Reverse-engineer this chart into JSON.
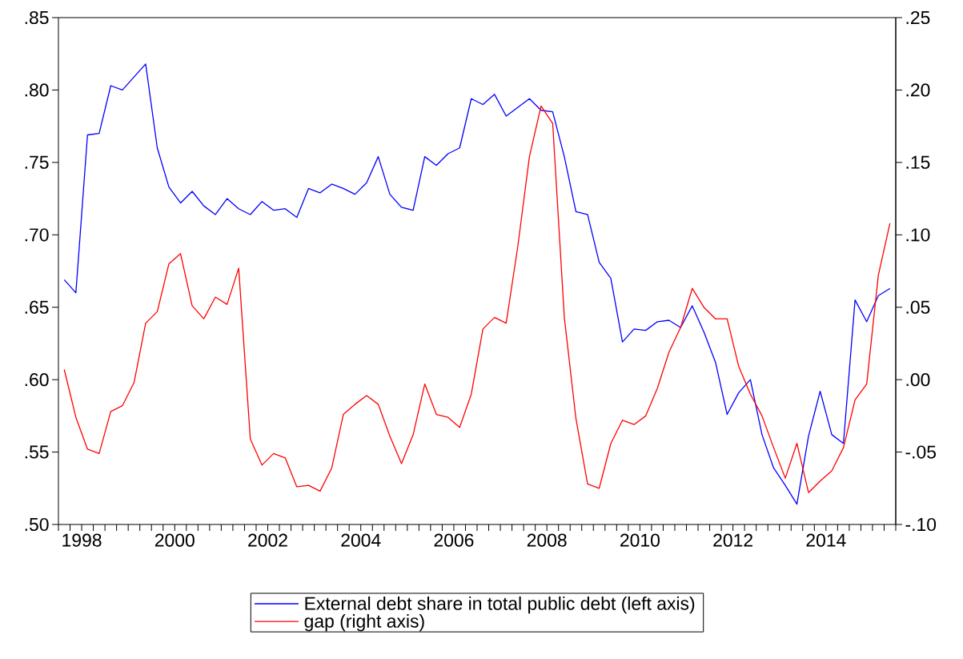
{
  "chart_data": {
    "type": "line",
    "x": [
      1998.125,
      1998.375,
      1998.625,
      1998.875,
      1999.125,
      1999.375,
      1999.625,
      1999.875,
      2000.125,
      2000.375,
      2000.625,
      2000.875,
      2001.125,
      2001.375,
      2001.625,
      2001.875,
      2002.125,
      2002.375,
      2002.625,
      2002.875,
      2003.125,
      2003.375,
      2003.625,
      2003.875,
      2004.125,
      2004.375,
      2004.625,
      2004.875,
      2005.125,
      2005.375,
      2005.625,
      2005.875,
      2006.125,
      2006.375,
      2006.625,
      2006.875,
      2007.125,
      2007.375,
      2007.625,
      2007.875,
      2008.125,
      2008.375,
      2008.625,
      2008.875,
      2009.125,
      2009.375,
      2009.625,
      2009.875,
      2010.125,
      2010.375,
      2010.625,
      2010.875,
      2011.125,
      2011.375,
      2011.625,
      2011.875,
      2012.125,
      2012.375,
      2012.625,
      2012.875,
      2013.125,
      2013.375,
      2013.625,
      2013.875,
      2014.125,
      2014.375,
      2014.625,
      2014.875,
      2015.125,
      2015.375,
      2015.625,
      2015.875
    ],
    "series": [
      {
        "name": "External debt share in total public debt (left axis)",
        "color": "#0000ff",
        "axis": "y",
        "values": [
          0.669,
          0.66,
          0.769,
          0.77,
          0.803,
          0.8,
          0.809,
          0.818,
          0.76,
          0.733,
          0.722,
          0.73,
          0.72,
          0.714,
          0.725,
          0.718,
          0.714,
          0.723,
          0.717,
          0.718,
          0.712,
          0.732,
          0.729,
          0.735,
          0.732,
          0.728,
          0.736,
          0.754,
          0.728,
          0.719,
          0.717,
          0.754,
          0.748,
          0.756,
          0.76,
          0.794,
          0.79,
          0.797,
          0.782,
          0.788,
          0.794,
          0.786,
          0.785,
          0.754,
          0.716,
          0.714,
          0.681,
          0.67,
          0.626,
          0.635,
          0.634,
          0.64,
          0.641,
          0.636,
          0.651,
          0.633,
          0.612,
          0.576,
          0.591,
          0.6,
          0.562,
          0.539,
          0.527,
          0.514,
          0.561,
          0.592,
          0.562,
          0.556,
          0.655,
          0.64,
          0.658,
          0.663
        ]
      },
      {
        "name": "gap (right axis)",
        "color": "#ff0000",
        "axis": "y2",
        "values": [
          0.007,
          -0.026,
          -0.048,
          -0.051,
          -0.022,
          -0.018,
          -0.002,
          0.039,
          0.047,
          0.08,
          0.087,
          0.051,
          0.042,
          0.057,
          0.052,
          0.077,
          -0.041,
          -0.059,
          -0.051,
          -0.054,
          -0.074,
          -0.073,
          -0.077,
          -0.061,
          -0.024,
          -0.017,
          -0.011,
          -0.017,
          -0.039,
          -0.058,
          -0.038,
          -0.003,
          -0.024,
          -0.026,
          -0.033,
          -0.01,
          0.035,
          0.043,
          0.039,
          0.092,
          0.154,
          0.189,
          0.177,
          0.043,
          -0.027,
          -0.072,
          -0.075,
          -0.044,
          -0.028,
          -0.031,
          -0.025,
          -0.006,
          0.019,
          0.036,
          0.063,
          0.05,
          0.042,
          0.042,
          0.009,
          -0.01,
          -0.025,
          -0.047,
          -0.068,
          -0.044,
          -0.078,
          -0.07,
          -0.063,
          -0.047,
          -0.014,
          -0.003,
          0.072,
          0.108
        ]
      }
    ],
    "xlim": [
      1998,
      2016
    ],
    "xticks": [
      {
        "value": 1998,
        "label": null
      },
      {
        "value": 1998.25,
        "label": null
      },
      {
        "value": 1998.5,
        "label": "1998"
      },
      {
        "value": 1998.75,
        "label": null
      },
      {
        "value": 1999,
        "label": null
      },
      {
        "value": 1999.25,
        "label": null
      },
      {
        "value": 1999.5,
        "label": null
      },
      {
        "value": 1999.75,
        "label": null
      },
      {
        "value": 2000,
        "label": null
      },
      {
        "value": 2000.25,
        "label": null
      },
      {
        "value": 2000.5,
        "label": "2000"
      },
      {
        "value": 2000.75,
        "label": null
      },
      {
        "value": 2001,
        "label": null
      },
      {
        "value": 2001.25,
        "label": null
      },
      {
        "value": 2001.5,
        "label": null
      },
      {
        "value": 2001.75,
        "label": null
      },
      {
        "value": 2002,
        "label": null
      },
      {
        "value": 2002.25,
        "label": null
      },
      {
        "value": 2002.5,
        "label": "2002"
      },
      {
        "value": 2002.75,
        "label": null
      },
      {
        "value": 2003,
        "label": null
      },
      {
        "value": 2003.25,
        "label": null
      },
      {
        "value": 2003.5,
        "label": null
      },
      {
        "value": 2003.75,
        "label": null
      },
      {
        "value": 2004,
        "label": null
      },
      {
        "value": 2004.25,
        "label": null
      },
      {
        "value": 2004.5,
        "label": "2004"
      },
      {
        "value": 2004.75,
        "label": null
      },
      {
        "value": 2005,
        "label": null
      },
      {
        "value": 2005.25,
        "label": null
      },
      {
        "value": 2005.5,
        "label": null
      },
      {
        "value": 2005.75,
        "label": null
      },
      {
        "value": 2006,
        "label": null
      },
      {
        "value": 2006.25,
        "label": null
      },
      {
        "value": 2006.5,
        "label": "2006"
      },
      {
        "value": 2006.75,
        "label": null
      },
      {
        "value": 2007,
        "label": null
      },
      {
        "value": 2007.25,
        "label": null
      },
      {
        "value": 2007.5,
        "label": null
      },
      {
        "value": 2007.75,
        "label": null
      },
      {
        "value": 2008,
        "label": null
      },
      {
        "value": 2008.25,
        "label": null
      },
      {
        "value": 2008.5,
        "label": "2008"
      },
      {
        "value": 2008.75,
        "label": null
      },
      {
        "value": 2009,
        "label": null
      },
      {
        "value": 2009.25,
        "label": null
      },
      {
        "value": 2009.5,
        "label": null
      },
      {
        "value": 2009.75,
        "label": null
      },
      {
        "value": 2010,
        "label": null
      },
      {
        "value": 2010.25,
        "label": null
      },
      {
        "value": 2010.5,
        "label": "2010"
      },
      {
        "value": 2010.75,
        "label": null
      },
      {
        "value": 2011,
        "label": null
      },
      {
        "value": 2011.25,
        "label": null
      },
      {
        "value": 2011.5,
        "label": null
      },
      {
        "value": 2011.75,
        "label": null
      },
      {
        "value": 2012,
        "label": null
      },
      {
        "value": 2012.25,
        "label": null
      },
      {
        "value": 2012.5,
        "label": "2012"
      },
      {
        "value": 2012.75,
        "label": null
      },
      {
        "value": 2013,
        "label": null
      },
      {
        "value": 2013.25,
        "label": null
      },
      {
        "value": 2013.5,
        "label": null
      },
      {
        "value": 2013.75,
        "label": null
      },
      {
        "value": 2014,
        "label": null
      },
      {
        "value": 2014.25,
        "label": null
      },
      {
        "value": 2014.5,
        "label": "2014"
      },
      {
        "value": 2014.75,
        "label": null
      },
      {
        "value": 2015,
        "label": null
      },
      {
        "value": 2015.25,
        "label": null
      },
      {
        "value": 2015.5,
        "label": null
      },
      {
        "value": 2015.75,
        "label": null
      },
      {
        "value": 2016,
        "label": null
      }
    ],
    "ylim": [
      0.5,
      0.85
    ],
    "yticks": [
      {
        "value": 0.5,
        "label": ".50"
      },
      {
        "value": 0.55,
        "label": ".55"
      },
      {
        "value": 0.6,
        "label": ".60"
      },
      {
        "value": 0.65,
        "label": ".65"
      },
      {
        "value": 0.7,
        "label": ".70"
      },
      {
        "value": 0.75,
        "label": ".75"
      },
      {
        "value": 0.8,
        "label": ".80"
      },
      {
        "value": 0.85,
        "label": ".85"
      }
    ],
    "y2lim": [
      -0.1,
      0.25
    ],
    "y2ticks": [
      {
        "value": -0.1,
        "label": "-.10"
      },
      {
        "value": -0.05,
        "label": "-.05"
      },
      {
        "value": 0,
        "label": ".00"
      },
      {
        "value": 0.05,
        "label": ".05"
      },
      {
        "value": 0.1,
        "label": ".10"
      },
      {
        "value": 0.15,
        "label": ".15"
      },
      {
        "value": 0.2,
        "label": ".20"
      },
      {
        "value": 0.25,
        "label": ".25"
      }
    ],
    "legend": "bottom"
  }
}
